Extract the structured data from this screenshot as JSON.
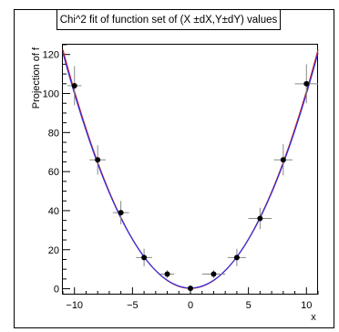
{
  "chart_data": {
    "type": "scatter",
    "title": "Chi^2 fit of function set of (X ±dX,Y±dY) values",
    "xlabel": "x",
    "ylabel": "Projection of f",
    "xlim": [
      -11,
      11
    ],
    "ylim": [
      -3,
      125
    ],
    "x_ticks": [
      -10,
      -5,
      0,
      5,
      10
    ],
    "y_ticks": [
      0,
      20,
      40,
      60,
      80,
      100,
      120
    ],
    "grid": false,
    "legend": "none",
    "points": [
      {
        "x": -10,
        "y": 104,
        "dx": 0.6,
        "dy": 10
      },
      {
        "x": -8,
        "y": 66,
        "dx": 0.7,
        "dy": 7.5
      },
      {
        "x": -6,
        "y": 39,
        "dx": 0.7,
        "dy": 6
      },
      {
        "x": -4,
        "y": 16,
        "dx": 0.7,
        "dy": 4.5
      },
      {
        "x": -2,
        "y": 7.5,
        "dx": 0.6,
        "dy": 2
      },
      {
        "x": 0,
        "y": 0.2,
        "dx": 0.3,
        "dy": 0.6
      },
      {
        "x": 2,
        "y": 7.5,
        "dx": 1.0,
        "dy": 2
      },
      {
        "x": 4,
        "y": 16,
        "dx": 0.8,
        "dy": 4.5
      },
      {
        "x": 6,
        "y": 36,
        "dx": 1.0,
        "dy": 5.5
      },
      {
        "x": 8,
        "y": 66,
        "dx": 0.8,
        "dy": 8
      },
      {
        "x": 10,
        "y": 105,
        "dx": 1.0,
        "dy": 10
      }
    ],
    "curves": [
      {
        "color": "#cc2020",
        "coeffs": [
          0.2,
          0.0,
          1.01
        ]
      },
      {
        "color": "#3030e0",
        "coeffs": [
          0.4,
          0.0,
          0.995
        ]
      }
    ],
    "colors": {
      "marker": "#000000",
      "error_bar": "#888888"
    }
  }
}
